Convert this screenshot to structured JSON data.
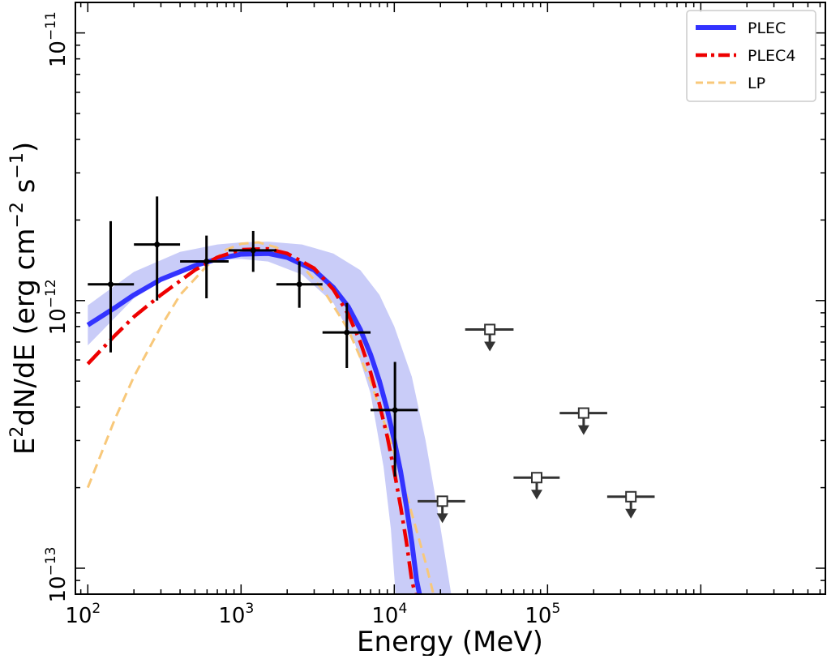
{
  "chart_data": {
    "type": "scatter",
    "xlabel": "Energy (MeV)",
    "ylabel": "E²dN/dE (erg cm⁻² s⁻¹)",
    "ylabel_parts": {
      "a": "E",
      "a_sup": "2",
      "b": "dN/dE (erg cm",
      "b_sup": "−2",
      "c": " s",
      "c_sup": "−1",
      "d": ")"
    },
    "x_scale": "log",
    "y_scale": "log",
    "xlim": [
      83,
      6500000
    ],
    "ylim": [
      8e-14,
      1.3e-11
    ],
    "x_ticks": [
      {
        "value": 100,
        "base": "10",
        "exp": "2"
      },
      {
        "value": 1000,
        "base": "10",
        "exp": "3"
      },
      {
        "value": 10000,
        "base": "10",
        "exp": "4"
      },
      {
        "value": 100000,
        "base": "10",
        "exp": "5"
      }
    ],
    "y_ticks": [
      {
        "value": 1e-13,
        "base": "10",
        "exp": "−13"
      },
      {
        "value": 1e-12,
        "base": "10",
        "exp": "−12"
      },
      {
        "value": 1e-11,
        "base": "10",
        "exp": "−11"
      }
    ],
    "grid": false,
    "legend_position": "top-right",
    "legend": [
      {
        "label": "PLEC",
        "color": "#3333ff",
        "style": "solid"
      },
      {
        "label": "PLEC4",
        "color": "#ee0000",
        "style": "dashdot"
      },
      {
        "label": "LP",
        "color": "#f8c87a",
        "style": "dashed"
      }
    ],
    "band": {
      "color": "#c9ccf8",
      "upper": [
        [
          100,
          9.6e-13
        ],
        [
          200,
          1.28e-12
        ],
        [
          400,
          1.52e-12
        ],
        [
          700,
          1.62e-12
        ],
        [
          1000,
          1.65e-12
        ],
        [
          1500,
          1.66e-12
        ],
        [
          2500,
          1.62e-12
        ],
        [
          4000,
          1.5e-12
        ],
        [
          6000,
          1.3e-12
        ],
        [
          8000,
          1.05e-12
        ],
        [
          10000,
          8e-13
        ],
        [
          13000,
          5.2e-13
        ],
        [
          16000,
          3e-13
        ],
        [
          19000,
          1.7e-13
        ],
        [
          21000,
          1.2e-13
        ],
        [
          23500,
          8e-14
        ]
      ],
      "lower": [
        [
          100,
          6.8e-13
        ],
        [
          200,
          1.02e-12
        ],
        [
          400,
          1.3e-12
        ],
        [
          700,
          1.42e-12
        ],
        [
          1000,
          1.43e-12
        ],
        [
          1500,
          1.4e-12
        ],
        [
          2500,
          1.25e-12
        ],
        [
          4000,
          9.8e-13
        ],
        [
          5500,
          7e-13
        ],
        [
          7000,
          4.5e-13
        ],
        [
          8500,
          2.4e-13
        ],
        [
          9500,
          1.4e-13
        ],
        [
          10200,
          8e-14
        ]
      ]
    },
    "series": [
      {
        "name": "PLEC",
        "color": "#3333ff",
        "points": [
          [
            100,
            8.1e-13
          ],
          [
            150,
            9.4e-13
          ],
          [
            200,
            1.05e-12
          ],
          [
            300,
            1.2e-12
          ],
          [
            500,
            1.35e-12
          ],
          [
            700,
            1.43e-12
          ],
          [
            1000,
            1.49e-12
          ],
          [
            1500,
            1.5e-12
          ],
          [
            2000,
            1.45e-12
          ],
          [
            3000,
            1.3e-12
          ],
          [
            4000,
            1.12e-12
          ],
          [
            5000,
            9.5e-13
          ],
          [
            6000,
            7.8e-13
          ],
          [
            7000,
            6.3e-13
          ],
          [
            8000,
            5e-13
          ],
          [
            9000,
            3.9e-13
          ],
          [
            10000,
            3e-13
          ],
          [
            11000,
            2.3e-13
          ],
          [
            12000,
            1.7e-13
          ],
          [
            13000,
            1.25e-13
          ],
          [
            14000,
            9e-14
          ],
          [
            14600,
            8e-14
          ]
        ]
      },
      {
        "name": "PLEC4",
        "color": "#ee0000",
        "points": [
          [
            100,
            5.8e-13
          ],
          [
            150,
            7.4e-13
          ],
          [
            200,
            8.7e-13
          ],
          [
            300,
            1.05e-12
          ],
          [
            500,
            1.3e-12
          ],
          [
            700,
            1.45e-12
          ],
          [
            1000,
            1.55e-12
          ],
          [
            1500,
            1.56e-12
          ],
          [
            2000,
            1.5e-12
          ],
          [
            3000,
            1.32e-12
          ],
          [
            4000,
            1.1e-12
          ],
          [
            5000,
            8.9e-13
          ],
          [
            6000,
            7e-13
          ],
          [
            7000,
            5.4e-13
          ],
          [
            8000,
            4.1e-13
          ],
          [
            9000,
            3.1e-13
          ],
          [
            10000,
            2.3e-13
          ],
          [
            11000,
            1.7e-13
          ],
          [
            12000,
            1.25e-13
          ],
          [
            13000,
            9e-14
          ],
          [
            13700,
            8e-14
          ]
        ]
      },
      {
        "name": "LP",
        "color": "#f8c87a",
        "points": [
          [
            100,
            2e-13
          ],
          [
            150,
            3.6e-13
          ],
          [
            200,
            5.2e-13
          ],
          [
            300,
            8e-13
          ],
          [
            400,
            1.05e-12
          ],
          [
            600,
            1.35e-12
          ],
          [
            800,
            1.55e-12
          ],
          [
            1000,
            1.63e-12
          ],
          [
            1300,
            1.65e-12
          ],
          [
            1700,
            1.58e-12
          ],
          [
            2500,
            1.35e-12
          ],
          [
            3500,
            1.08e-12
          ],
          [
            5000,
            7.8e-13
          ],
          [
            7000,
            5e-13
          ],
          [
            10000,
            2.7e-13
          ],
          [
            13000,
            1.6e-13
          ],
          [
            16000,
            1.05e-13
          ],
          [
            18000,
            8e-14
          ]
        ]
      }
    ],
    "data_points": [
      {
        "x": 141,
        "y": 1.15e-12,
        "xerr": [
          100,
          200
        ],
        "yerr": [
          6.4e-13,
          1.98e-12
        ]
      },
      {
        "x": 283,
        "y": 1.62e-12,
        "xerr": [
          200,
          400
        ],
        "yerr": [
          1e-12,
          2.45e-12
        ]
      },
      {
        "x": 595,
        "y": 1.4e-12,
        "xerr": [
          400,
          830
        ],
        "yerr": [
          1.02e-12,
          1.75e-12
        ]
      },
      {
        "x": 1200,
        "y": 1.54e-12,
        "xerr": [
          830,
          1700
        ],
        "yerr": [
          1.28e-12,
          1.82e-12
        ]
      },
      {
        "x": 2400,
        "y": 1.15e-12,
        "xerr": [
          1700,
          3400
        ],
        "yerr": [
          9.4e-13,
          1.4e-12
        ]
      },
      {
        "x": 4900,
        "y": 7.6e-13,
        "xerr": [
          3400,
          7000
        ],
        "yerr": [
          5.6e-13,
          9.8e-13
        ]
      },
      {
        "x": 10100,
        "y": 3.9e-13,
        "xerr": [
          7000,
          14200
        ],
        "yerr": [
          2.2e-13,
          5.9e-13
        ]
      }
    ],
    "upper_limits": [
      {
        "x": 20600,
        "y": 1.78e-13,
        "xerr": [
          14200,
          29000
        ]
      },
      {
        "x": 42000,
        "y": 7.8e-13,
        "xerr": [
          29000,
          60000
        ]
      },
      {
        "x": 85000,
        "y": 2.18e-13,
        "xerr": [
          60000,
          120000
        ]
      },
      {
        "x": 172000,
        "y": 3.8e-13,
        "xerr": [
          120000,
          245000
        ]
      },
      {
        "x": 350000,
        "y": 1.85e-13,
        "xerr": [
          245000,
          500000
        ]
      }
    ]
  }
}
